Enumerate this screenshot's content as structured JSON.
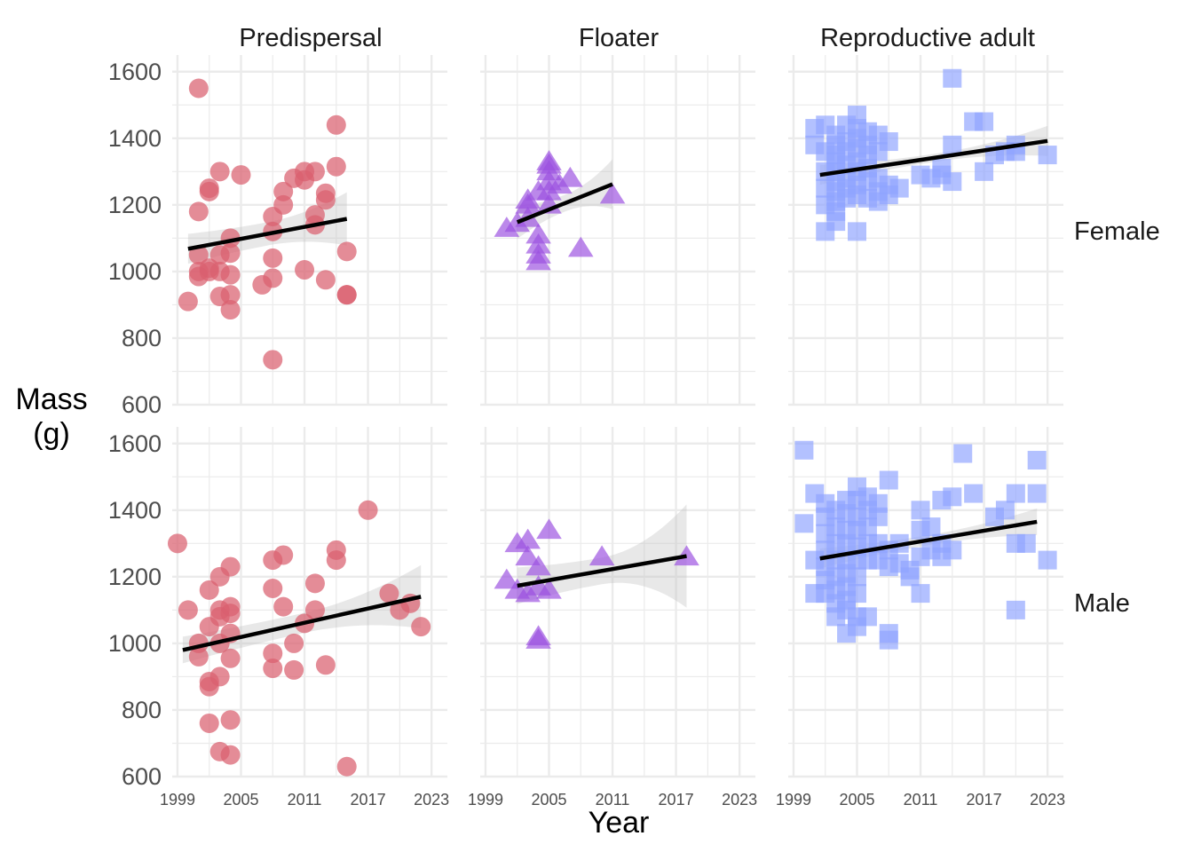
{
  "chart_data": {
    "type": "scatter",
    "title": "",
    "xlabel": "Year",
    "ylabel_lines": [
      "Mass",
      "(g)"
    ],
    "col_facets": [
      "Predispersal",
      "Floater",
      "Reproductive adult"
    ],
    "row_facets": [
      "Female",
      "Male"
    ],
    "xlim": [
      1998.5,
      2024.5
    ],
    "ylim": [
      600,
      1650
    ],
    "x_ticks": [
      1999,
      2005,
      2011,
      2017,
      2023
    ],
    "y_ticks": [
      600,
      800,
      1000,
      1200,
      1400,
      1600
    ],
    "grid": true,
    "colors": {
      "Predispersal": "#d95f6f",
      "Floater": "#9b4fe0",
      "Reproductive adult": "#8fa3ff",
      "trend": "#000000",
      "ribbon": "#bdbdbd",
      "grid": "#ebebeb"
    },
    "markers": {
      "Predispersal": "circle",
      "Floater": "triangle",
      "Reproductive adult": "square"
    },
    "panels": [
      {
        "row": "Female",
        "col": "Predispersal",
        "trend": {
          "x": [
            2000,
            2015
          ],
          "y": [
            1068,
            1158
          ]
        },
        "ribbon_halfwidth": [
          45,
          35,
          80
        ],
        "points": [
          [
            2000,
            910
          ],
          [
            2001,
            1550
          ],
          [
            2001,
            1180
          ],
          [
            2001,
            1050
          ],
          [
            2001,
            1000
          ],
          [
            2001,
            985
          ],
          [
            2002,
            1250
          ],
          [
            2002,
            1240
          ],
          [
            2002,
            1000
          ],
          [
            2002,
            1010
          ],
          [
            2003,
            1050
          ],
          [
            2003,
            1000
          ],
          [
            2003,
            925
          ],
          [
            2003,
            1300
          ],
          [
            2004,
            1100
          ],
          [
            2004,
            1055
          ],
          [
            2004,
            990
          ],
          [
            2004,
            930
          ],
          [
            2004,
            885
          ],
          [
            2005,
            1290
          ],
          [
            2007,
            960
          ],
          [
            2008,
            735
          ],
          [
            2008,
            1040
          ],
          [
            2008,
            1120
          ],
          [
            2008,
            1165
          ],
          [
            2008,
            980
          ],
          [
            2009,
            1240
          ],
          [
            2009,
            1200
          ],
          [
            2010,
            1280
          ],
          [
            2011,
            1005
          ],
          [
            2011,
            1275
          ],
          [
            2011,
            1300
          ],
          [
            2012,
            1170
          ],
          [
            2012,
            1140
          ],
          [
            2012,
            1300
          ],
          [
            2013,
            1235
          ],
          [
            2013,
            1215
          ],
          [
            2013,
            975
          ],
          [
            2014,
            1440
          ],
          [
            2014,
            1315
          ],
          [
            2015,
            1060
          ],
          [
            2015,
            930
          ],
          [
            2015,
            930
          ]
        ]
      },
      {
        "row": "Female",
        "col": "Floater",
        "trend": {
          "x": [
            2002,
            2011
          ],
          "y": [
            1148,
            1262
          ]
        },
        "ribbon_halfwidth": [
          50,
          25,
          75
        ],
        "points": [
          [
            2001,
            1130
          ],
          [
            2002,
            1145
          ],
          [
            2003,
            1160
          ],
          [
            2003,
            1200
          ],
          [
            2003,
            1215
          ],
          [
            2004,
            1240
          ],
          [
            2004,
            1050
          ],
          [
            2004,
            1030
          ],
          [
            2004,
            1080
          ],
          [
            2004,
            1110
          ],
          [
            2005,
            1270
          ],
          [
            2005,
            1300
          ],
          [
            2005,
            1320
          ],
          [
            2005,
            1330
          ],
          [
            2005,
            1240
          ],
          [
            2005,
            1200
          ],
          [
            2006,
            1260
          ],
          [
            2007,
            1280
          ],
          [
            2008,
            1070
          ],
          [
            2011,
            1230
          ]
        ]
      },
      {
        "row": "Female",
        "col": "Reproductive adult",
        "trend": {
          "x": [
            2001.5,
            2023
          ],
          "y": [
            1290,
            1392
          ]
        },
        "ribbon_halfwidth": [
          30,
          12,
          45
        ],
        "points": [
          [
            2001,
            1380
          ],
          [
            2001,
            1430
          ],
          [
            2002,
            1440
          ],
          [
            2002,
            1360
          ],
          [
            2002,
            1300
          ],
          [
            2002,
            1200
          ],
          [
            2002,
            1120
          ],
          [
            2002,
            1250
          ],
          [
            2003,
            1410
          ],
          [
            2003,
            1380
          ],
          [
            2003,
            1350
          ],
          [
            2003,
            1330
          ],
          [
            2003,
            1300
          ],
          [
            2003,
            1270
          ],
          [
            2003,
            1240
          ],
          [
            2003,
            1210
          ],
          [
            2003,
            1180
          ],
          [
            2003,
            1150
          ],
          [
            2004,
            1440
          ],
          [
            2004,
            1390
          ],
          [
            2004,
            1360
          ],
          [
            2004,
            1320
          ],
          [
            2004,
            1280
          ],
          [
            2004,
            1250
          ],
          [
            2004,
            1220
          ],
          [
            2005,
            1470
          ],
          [
            2005,
            1430
          ],
          [
            2005,
            1400
          ],
          [
            2005,
            1370
          ],
          [
            2005,
            1330
          ],
          [
            2005,
            1300
          ],
          [
            2005,
            1260
          ],
          [
            2005,
            1230
          ],
          [
            2005,
            1120
          ],
          [
            2006,
            1420
          ],
          [
            2006,
            1380
          ],
          [
            2006,
            1350
          ],
          [
            2006,
            1310
          ],
          [
            2006,
            1270
          ],
          [
            2006,
            1220
          ],
          [
            2007,
            1410
          ],
          [
            2007,
            1360
          ],
          [
            2007,
            1280
          ],
          [
            2007,
            1240
          ],
          [
            2007,
            1210
          ],
          [
            2008,
            1390
          ],
          [
            2008,
            1260
          ],
          [
            2008,
            1230
          ],
          [
            2009,
            1250
          ],
          [
            2011,
            1290
          ],
          [
            2012,
            1280
          ],
          [
            2013,
            1310
          ],
          [
            2013,
            1290
          ],
          [
            2014,
            1580
          ],
          [
            2014,
            1380
          ],
          [
            2014,
            1270
          ],
          [
            2016,
            1450
          ],
          [
            2017,
            1300
          ],
          [
            2017,
            1450
          ],
          [
            2018,
            1350
          ],
          [
            2019,
            1360
          ],
          [
            2020,
            1380
          ],
          [
            2020,
            1360
          ],
          [
            2023,
            1350
          ]
        ]
      },
      {
        "row": "Male",
        "col": "Predispersal",
        "trend": {
          "x": [
            1999.5,
            2022
          ],
          "y": [
            980,
            1140
          ]
        },
        "ribbon_halfwidth": [
          40,
          30,
          95
        ],
        "points": [
          [
            1999,
            1300
          ],
          [
            2000,
            1100
          ],
          [
            2001,
            960
          ],
          [
            2001,
            1000
          ],
          [
            2002,
            1160
          ],
          [
            2002,
            1050
          ],
          [
            2002,
            885
          ],
          [
            2002,
            870
          ],
          [
            2002,
            760
          ],
          [
            2003,
            1200
          ],
          [
            2003,
            1100
          ],
          [
            2003,
            1080
          ],
          [
            2003,
            1000
          ],
          [
            2003,
            900
          ],
          [
            2003,
            675
          ],
          [
            2004,
            1230
          ],
          [
            2004,
            1110
          ],
          [
            2004,
            1090
          ],
          [
            2004,
            1030
          ],
          [
            2004,
            955
          ],
          [
            2004,
            770
          ],
          [
            2004,
            665
          ],
          [
            2008,
            1250
          ],
          [
            2008,
            1165
          ],
          [
            2008,
            970
          ],
          [
            2008,
            925
          ],
          [
            2009,
            1265
          ],
          [
            2009,
            1110
          ],
          [
            2010,
            1000
          ],
          [
            2010,
            920
          ],
          [
            2011,
            1060
          ],
          [
            2012,
            1180
          ],
          [
            2012,
            1100
          ],
          [
            2013,
            935
          ],
          [
            2014,
            1250
          ],
          [
            2014,
            1280
          ],
          [
            2015,
            630
          ],
          [
            2017,
            1400
          ],
          [
            2019,
            1150
          ],
          [
            2020,
            1100
          ],
          [
            2021,
            1120
          ],
          [
            2022,
            1050
          ]
        ]
      },
      {
        "row": "Male",
        "col": "Floater",
        "trend": {
          "x": [
            2002,
            2018
          ],
          "y": [
            1173,
            1262
          ]
        },
        "ribbon_halfwidth": [
          55,
          40,
          155
        ],
        "points": [
          [
            2001,
            1190
          ],
          [
            2002,
            1300
          ],
          [
            2002,
            1160
          ],
          [
            2003,
            1150
          ],
          [
            2003,
            1260
          ],
          [
            2003,
            1310
          ],
          [
            2004,
            1230
          ],
          [
            2004,
            1170
          ],
          [
            2004,
            1020
          ],
          [
            2004,
            1010
          ],
          [
            2005,
            1340
          ],
          [
            2005,
            1160
          ],
          [
            2010,
            1260
          ],
          [
            2018,
            1260
          ]
        ]
      },
      {
        "row": "Male",
        "col": "Reproductive adult",
        "trend": {
          "x": [
            2001.5,
            2022
          ],
          "y": [
            1255,
            1365
          ]
        },
        "ribbon_halfwidth": [
          30,
          15,
          40
        ],
        "points": [
          [
            2000,
            1580
          ],
          [
            2000,
            1360
          ],
          [
            2001,
            1450
          ],
          [
            2001,
            1150
          ],
          [
            2001,
            1250
          ],
          [
            2002,
            1420
          ],
          [
            2002,
            1380
          ],
          [
            2002,
            1330
          ],
          [
            2002,
            1280
          ],
          [
            2002,
            1230
          ],
          [
            2002,
            1190
          ],
          [
            2002,
            1150
          ],
          [
            2003,
            1400
          ],
          [
            2003,
            1350
          ],
          [
            2003,
            1300
          ],
          [
            2003,
            1250
          ],
          [
            2003,
            1200
          ],
          [
            2003,
            1160
          ],
          [
            2003,
            1120
          ],
          [
            2003,
            1080
          ],
          [
            2004,
            1430
          ],
          [
            2004,
            1390
          ],
          [
            2004,
            1340
          ],
          [
            2004,
            1300
          ],
          [
            2004,
            1250
          ],
          [
            2004,
            1210
          ],
          [
            2004,
            1170
          ],
          [
            2004,
            1130
          ],
          [
            2004,
            1100
          ],
          [
            2004,
            1030
          ],
          [
            2005,
            1470
          ],
          [
            2005,
            1430
          ],
          [
            2005,
            1380
          ],
          [
            2005,
            1340
          ],
          [
            2005,
            1290
          ],
          [
            2005,
            1250
          ],
          [
            2005,
            1200
          ],
          [
            2005,
            1150
          ],
          [
            2005,
            1080
          ],
          [
            2005,
            1050
          ],
          [
            2006,
            1440
          ],
          [
            2006,
            1400
          ],
          [
            2006,
            1350
          ],
          [
            2006,
            1300
          ],
          [
            2006,
            1250
          ],
          [
            2006,
            1080
          ],
          [
            2007,
            1420
          ],
          [
            2007,
            1380
          ],
          [
            2007,
            1300
          ],
          [
            2007,
            1250
          ],
          [
            2008,
            1490
          ],
          [
            2008,
            1280
          ],
          [
            2008,
            1230
          ],
          [
            2008,
            1030
          ],
          [
            2008,
            1010
          ],
          [
            2009,
            1300
          ],
          [
            2009,
            1240
          ],
          [
            2010,
            1220
          ],
          [
            2010,
            1200
          ],
          [
            2011,
            1400
          ],
          [
            2011,
            1340
          ],
          [
            2011,
            1260
          ],
          [
            2011,
            1150
          ],
          [
            2012,
            1350
          ],
          [
            2012,
            1280
          ],
          [
            2013,
            1430
          ],
          [
            2013,
            1300
          ],
          [
            2013,
            1260
          ],
          [
            2014,
            1440
          ],
          [
            2014,
            1280
          ],
          [
            2015,
            1570
          ],
          [
            2016,
            1450
          ],
          [
            2018,
            1380
          ],
          [
            2019,
            1400
          ],
          [
            2020,
            1450
          ],
          [
            2020,
            1300
          ],
          [
            2020,
            1100
          ],
          [
            2021,
            1300
          ],
          [
            2022,
            1550
          ],
          [
            2022,
            1450
          ],
          [
            2023,
            1250
          ]
        ]
      }
    ]
  }
}
